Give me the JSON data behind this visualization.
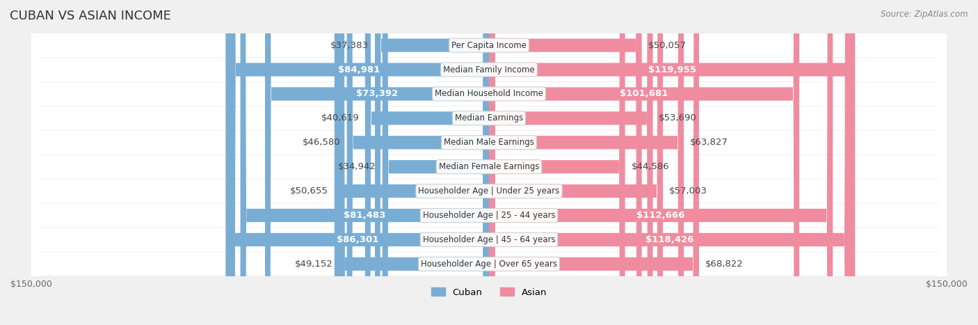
{
  "title": "CUBAN VS ASIAN INCOME",
  "source": "Source: ZipAtlas.com",
  "categories": [
    "Per Capita Income",
    "Median Family Income",
    "Median Household Income",
    "Median Earnings",
    "Median Male Earnings",
    "Median Female Earnings",
    "Householder Age | Under 25 years",
    "Householder Age | 25 - 44 years",
    "Householder Age | 45 - 64 years",
    "Householder Age | Over 65 years"
  ],
  "cuban_values": [
    37383,
    84981,
    73392,
    40619,
    46580,
    34942,
    50655,
    81483,
    86301,
    49152
  ],
  "asian_values": [
    50057,
    119955,
    101681,
    53690,
    63827,
    44586,
    57003,
    112666,
    118426,
    68822
  ],
  "cuban_labels": [
    "$37,383",
    "$84,981",
    "$73,392",
    "$40,619",
    "$46,580",
    "$34,942",
    "$50,655",
    "$81,483",
    "$86,301",
    "$49,152"
  ],
  "asian_labels": [
    "$50,057",
    "$119,955",
    "$101,681",
    "$53,690",
    "$63,827",
    "$44,586",
    "$57,003",
    "$112,666",
    "$118,426",
    "$68,822"
  ],
  "cuban_color": "#7aadd4",
  "asian_color": "#f08ca0",
  "cuban_color_dark": "#5b8fbf",
  "asian_color_dark": "#e8607a",
  "max_value": 150000,
  "bar_height": 0.55,
  "background_color": "#f5f5f5",
  "row_bg_color": "#ebebeb",
  "row_bg_color2": "#f2f2f2",
  "label_fontsize": 9.5,
  "title_fontsize": 13,
  "axis_label_fontsize": 9
}
